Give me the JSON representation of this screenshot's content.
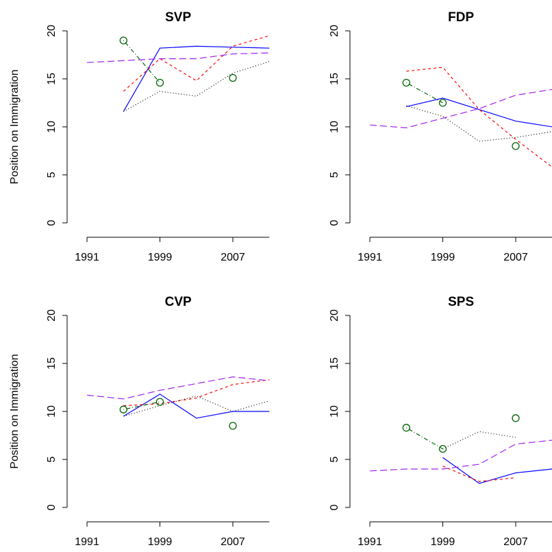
{
  "chart_data": [
    {
      "type": "line",
      "title": "SVP",
      "ylabel": "Position on Immigration",
      "x": [
        1991,
        1995,
        1999,
        2003,
        2007,
        2011
      ],
      "xlim": [
        1990.2,
        2011.8
      ],
      "xticks": [
        1991,
        1999,
        2007
      ],
      "ylim": [
        -0.8,
        20.8
      ],
      "yticks": [
        0,
        5,
        10,
        15,
        20
      ],
      "series": [
        {
          "color": "#0000ff",
          "dash": "solid",
          "values": [
            null,
            11.6,
            18.2,
            18.4,
            18.3,
            18.2
          ]
        },
        {
          "color": "#ff0000",
          "dash": "dashed",
          "values": [
            null,
            13.7,
            17.1,
            14.8,
            18.4,
            19.5
          ]
        },
        {
          "color": "#a020f0",
          "dash": "longdash",
          "values": [
            16.7,
            16.9,
            17.1,
            17.1,
            17.6,
            17.7
          ]
        },
        {
          "color": "#000000",
          "dash": "dotted",
          "values": [
            null,
            11.6,
            13.7,
            13.2,
            15.6,
            16.8
          ]
        },
        {
          "color": "#006400",
          "dash": "dotdash",
          "marker": "circle",
          "values": [
            null,
            19.0,
            14.6,
            null,
            15.1,
            null
          ]
        }
      ]
    },
    {
      "type": "line",
      "title": "FDP",
      "x": [
        1991,
        1995,
        1999,
        2003,
        2007,
        2011
      ],
      "xlim": [
        1990.2,
        2011.8
      ],
      "xticks": [
        1991,
        1999,
        2007
      ],
      "ylim": [
        -0.8,
        20.8
      ],
      "yticks": [
        0,
        5,
        10,
        15,
        20
      ],
      "series": [
        {
          "color": "#0000ff",
          "dash": "solid",
          "values": [
            null,
            12.1,
            13.0,
            11.8,
            10.6,
            10.0
          ]
        },
        {
          "color": "#ff0000",
          "dash": "dashed",
          "values": [
            null,
            15.8,
            16.2,
            11.8,
            8.7,
            5.8
          ]
        },
        {
          "color": "#a020f0",
          "dash": "longdash",
          "values": [
            10.2,
            9.9,
            10.9,
            11.9,
            13.3,
            13.9
          ]
        },
        {
          "color": "#000000",
          "dash": "dotted",
          "values": [
            null,
            12.2,
            11.1,
            8.5,
            8.9,
            9.5
          ]
        },
        {
          "color": "#006400",
          "dash": "dotdash",
          "marker": "circle",
          "values": [
            null,
            14.6,
            12.5,
            null,
            8.0,
            null
          ]
        }
      ]
    },
    {
      "type": "line",
      "title": "CVP",
      "ylabel": "Position on Immigration",
      "x": [
        1991,
        1995,
        1999,
        2003,
        2007,
        2011
      ],
      "xlim": [
        1990.2,
        2011.8
      ],
      "xticks": [
        1991,
        1999,
        2007
      ],
      "ylim": [
        -0.8,
        20.8
      ],
      "yticks": [
        0,
        5,
        10,
        15,
        20
      ],
      "series": [
        {
          "color": "#0000ff",
          "dash": "solid",
          "values": [
            null,
            9.5,
            11.8,
            9.3,
            10.0,
            10.0
          ]
        },
        {
          "color": "#ff0000",
          "dash": "dashed",
          "values": [
            null,
            10.6,
            10.8,
            11.4,
            12.8,
            13.3
          ]
        },
        {
          "color": "#a020f0",
          "dash": "longdash",
          "values": [
            11.7,
            11.3,
            12.2,
            12.9,
            13.6,
            13.2
          ]
        },
        {
          "color": "#000000",
          "dash": "dotted",
          "values": [
            null,
            9.5,
            10.6,
            11.6,
            10.0,
            11.1
          ]
        },
        {
          "color": "#006400",
          "dash": "dotdash",
          "marker": "circle",
          "values": [
            null,
            10.2,
            11.0,
            null,
            8.5,
            null
          ]
        }
      ]
    },
    {
      "type": "line",
      "title": "SPS",
      "x": [
        1991,
        1995,
        1999,
        2003,
        2007,
        2011
      ],
      "xlim": [
        1990.2,
        2011.8
      ],
      "xticks": [
        1991,
        1999,
        2007
      ],
      "ylim": [
        -0.8,
        20.8
      ],
      "yticks": [
        0,
        5,
        10,
        15,
        20
      ],
      "series": [
        {
          "color": "#0000ff",
          "dash": "solid",
          "values": [
            null,
            null,
            5.2,
            2.5,
            3.6,
            4.0
          ]
        },
        {
          "color": "#ff0000",
          "dash": "dashed",
          "values": [
            null,
            null,
            4.3,
            2.7,
            3.1,
            null
          ]
        },
        {
          "color": "#a020f0",
          "dash": "longdash",
          "values": [
            3.8,
            4.0,
            4.0,
            4.5,
            6.6,
            7.0
          ]
        },
        {
          "color": "#000000",
          "dash": "dotted",
          "values": [
            null,
            null,
            6.1,
            7.9,
            7.3,
            null
          ]
        },
        {
          "color": "#006400",
          "dash": "dotdash",
          "marker": "circle",
          "values": [
            null,
            8.3,
            6.1,
            null,
            9.3,
            null
          ]
        }
      ]
    }
  ]
}
